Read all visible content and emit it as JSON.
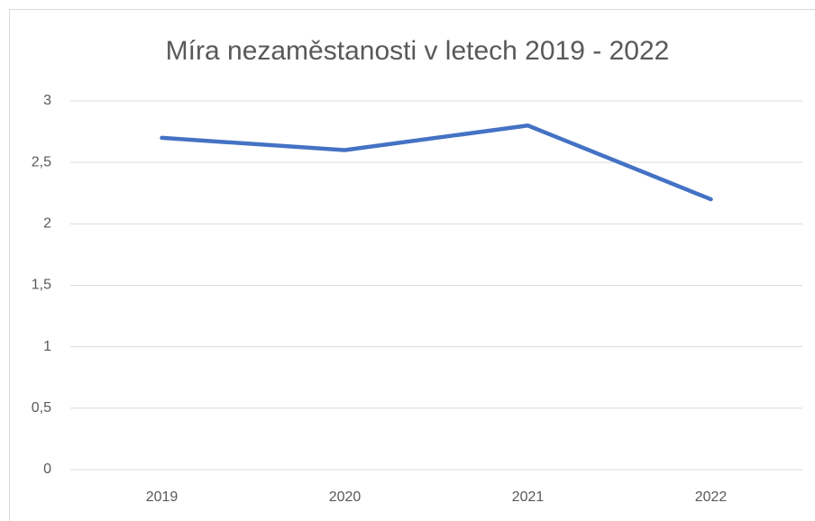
{
  "chart_data": {
    "type": "line",
    "title": "Míra nezaměstanosti v letech 2019 - 2022",
    "categories": [
      "2019",
      "2020",
      "2021",
      "2022"
    ],
    "values": [
      2.7,
      2.6,
      2.8,
      2.2
    ],
    "color": "#4472c4",
    "ylim": [
      0,
      3
    ],
    "yticks": [
      0,
      {
        "value": 0.5,
        "label": "0,5"
      },
      1,
      {
        "value": 1.5,
        "label": "1,5"
      },
      2,
      {
        "value": 2.5,
        "label": "2,5"
      },
      3
    ],
    "grid": true
  }
}
